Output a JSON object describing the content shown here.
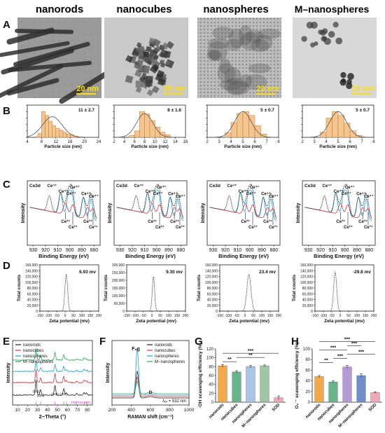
{
  "columns": [
    "nanorods",
    "nanocubes",
    "nanospheres",
    "M–nanospheres"
  ],
  "panel_letters": [
    "A",
    "B",
    "C",
    "D",
    "E",
    "F",
    "G",
    "H"
  ],
  "colors": {
    "accent_yellow": "#ffdd00",
    "hist_fill": "#f6c48e",
    "blue": "#1aa0d8",
    "red": "#e0303a",
    "green": "#2aa860",
    "black": "#222222",
    "gray": "#555555",
    "magenta": "#cc33cc"
  },
  "tem": {
    "scale_label": "20 nm",
    "images": [
      {
        "column": "nanorods",
        "tone": "#9a9a9a",
        "content": "elongated rods"
      },
      {
        "column": "nanocubes",
        "tone": "#c9c9c9",
        "content": "dense cluster of cubes"
      },
      {
        "column": "nanospheres",
        "tone": "#bdbdbd",
        "content": "fine sphere aggregates"
      },
      {
        "column": "M–nanospheres",
        "tone": "#d8d8d8",
        "content": "sparse sphere clusters"
      }
    ]
  },
  "chart_data": [
    {
      "panel": "B",
      "column": "nanorods",
      "type": "bar",
      "annotation": "11 ± 2.7",
      "xlabel": "Particle size (nm)",
      "ylabel": "Frequency (%)",
      "xlim": [
        4,
        24
      ],
      "xticks": [
        "4",
        "8",
        "12",
        "16",
        "20",
        "24"
      ],
      "ylim": [
        0,
        50
      ],
      "yticks": [
        "0",
        "10",
        "20",
        "30",
        "40",
        "50"
      ],
      "bins": [
        [
          6,
          7,
          1
        ],
        [
          7,
          8,
          6
        ],
        [
          8,
          9,
          40
        ],
        [
          9,
          10,
          34
        ],
        [
          10,
          11,
          25
        ],
        [
          11,
          12,
          18
        ],
        [
          12,
          13,
          14
        ],
        [
          13,
          14,
          11
        ],
        [
          14,
          15,
          8
        ],
        [
          15,
          16,
          5
        ],
        [
          16,
          17,
          4
        ],
        [
          17,
          18,
          2
        ]
      ],
      "fit": {
        "mean": 11,
        "sd": 2.7,
        "peak": 32
      }
    },
    {
      "panel": "B",
      "column": "nanocubes",
      "type": "bar",
      "annotation": "8 ± 1.6",
      "xlabel": "Particle size (nm)",
      "ylabel": "Frequency (%)",
      "xlim": [
        2,
        16
      ],
      "xticks": [
        "2",
        "4",
        "6",
        "8",
        "10",
        "12",
        "14",
        "16"
      ],
      "ylim": [
        0,
        50
      ],
      "yticks": [
        "0",
        "10",
        "20",
        "30",
        "40",
        "50"
      ],
      "bins": [
        [
          5,
          6,
          3
        ],
        [
          6,
          7,
          10
        ],
        [
          7,
          8,
          40
        ],
        [
          8,
          9,
          36
        ],
        [
          9,
          10,
          26
        ],
        [
          10,
          11,
          16
        ],
        [
          11,
          12,
          8
        ],
        [
          12,
          13,
          4
        ]
      ],
      "fit": {
        "mean": 8,
        "sd": 1.6,
        "peak": 37
      }
    },
    {
      "panel": "B",
      "column": "nanospheres",
      "type": "bar",
      "annotation": "5 ± 0.7",
      "xlabel": "Particle size (nm)",
      "ylabel": "Frequency (%)",
      "xlim": [
        2,
        8
      ],
      "xticks": [
        "2",
        "3",
        "4",
        "5",
        "6",
        "7",
        "8"
      ],
      "ylim": [
        0,
        50
      ],
      "yticks": [
        "0",
        "10",
        "20",
        "30",
        "40",
        "50"
      ],
      "bins": [
        [
          3.5,
          4,
          7
        ],
        [
          4,
          4.5,
          23
        ],
        [
          4.5,
          5,
          37
        ],
        [
          5,
          5.5,
          40
        ],
        [
          5.5,
          6,
          34
        ],
        [
          6,
          6.5,
          18
        ],
        [
          6.5,
          7,
          5
        ]
      ],
      "fit": {
        "mean": 5,
        "sd": 0.7,
        "peak": 40
      }
    },
    {
      "panel": "B",
      "column": "M–nanospheres",
      "type": "bar",
      "annotation": "5 ± 0.7",
      "xlabel": "Particle size (nm)",
      "ylabel": "Frequency (%)",
      "xlim": [
        2,
        8
      ],
      "xticks": [
        "2",
        "3",
        "4",
        "5",
        "6",
        "7",
        "8"
      ],
      "ylim": [
        0,
        50
      ],
      "yticks": [
        "0",
        "10",
        "20",
        "30",
        "40",
        "50"
      ],
      "bins": [
        [
          3.5,
          4,
          8
        ],
        [
          4,
          4.5,
          30
        ],
        [
          4.5,
          5,
          40
        ],
        [
          5,
          5.5,
          34
        ],
        [
          5.5,
          6,
          22
        ],
        [
          6,
          6.5,
          10
        ],
        [
          6.5,
          7,
          3
        ]
      ],
      "fit": {
        "mean": 5,
        "sd": 0.7,
        "peak": 40
      }
    },
    {
      "panel": "C",
      "type": "line",
      "xlabel": "Binding Energy (eV)",
      "ylabel": "Intensity",
      "xlim": [
        935,
        875
      ],
      "xticks": [
        "930",
        "920",
        "910",
        "900",
        "890",
        "880"
      ],
      "core_label": "Ce3d",
      "peak_labels": [
        "Ce⁴⁺",
        "Ce⁴⁺",
        "Ce⁴⁺",
        "Ce⁴⁺",
        "Ce⁴⁺",
        "Ce⁴⁺",
        "Ce³⁺",
        "Ce³⁺",
        "Ce³⁺",
        "Ce³⁺"
      ],
      "series": [
        {
          "color": "black",
          "kind": "measured"
        },
        {
          "color": "blue",
          "kind": "Ce4+ fit"
        },
        {
          "color": "red",
          "kind": "Ce3+ fit"
        }
      ]
    },
    {
      "panel": "D",
      "column": "nanorods",
      "type": "line",
      "annotation": "6.93 mv",
      "xlabel": "Zeta potential (mv)",
      "ylabel": "Total counts",
      "xlim": [
        -150,
        200
      ],
      "xticks": [
        "-150",
        "-100",
        "-50",
        "0",
        "50",
        "100",
        "150",
        "200"
      ],
      "ylim": [
        0,
        160000
      ],
      "yticks": [
        "0",
        "20,000",
        "40,000",
        "60,000",
        "80,000",
        "100,000",
        "120,000",
        "140,000",
        "160,000"
      ],
      "peak": {
        "x": 6.93,
        "y": 128000,
        "width": 8
      }
    },
    {
      "panel": "D",
      "column": "nanocubes",
      "type": "line",
      "annotation": "9.30 mv",
      "xlabel": "Zeta potential (mv)",
      "ylabel": "Total counts",
      "xlim": [
        -150,
        200
      ],
      "xticks": [
        "-150",
        "-100",
        "-50",
        "0",
        "50",
        "100",
        "150",
        "200"
      ],
      "ylim": [
        0,
        300000
      ],
      "yticks": [
        "0",
        "50,000",
        "100,000",
        "150,000",
        "200,000",
        "250,000",
        "300,000"
      ],
      "peak": {
        "x": 9.3,
        "y": 225000,
        "width": 7
      }
    },
    {
      "panel": "D",
      "column": "nanospheres",
      "type": "line",
      "annotation": "23.4 mv",
      "xlabel": "Zeta potential (mv)",
      "ylabel": "Total counts",
      "xlim": [
        -150,
        200
      ],
      "xticks": [
        "-150",
        "-100",
        "-50",
        "0",
        "50",
        "100",
        "150",
        "200"
      ],
      "ylim": [
        0,
        160000
      ],
      "yticks": [
        "0",
        "20,000",
        "40,000",
        "60,000",
        "80,000",
        "100,000",
        "120,000",
        "140,000",
        "160,000"
      ],
      "peak": {
        "x": 23.4,
        "y": 128000,
        "width": 12
      }
    },
    {
      "panel": "D",
      "column": "M–nanospheres",
      "type": "line",
      "annotation": "-29.8 mv",
      "xlabel": "Zeta potential (mv)",
      "ylabel": "Total counts",
      "xlim": [
        -150,
        200
      ],
      "xticks": [
        "-150",
        "-100",
        "-50",
        "0",
        "50",
        "100",
        "150",
        "200"
      ],
      "ylim": [
        0,
        160000
      ],
      "yticks": [
        "0",
        "20,000",
        "40,000",
        "60,000",
        "80,000",
        "100,000",
        "120,000",
        "140,000",
        "160,000"
      ],
      "peak": {
        "x": -29.8,
        "y": 135000,
        "width": 9
      }
    },
    {
      "panel": "E",
      "type": "line",
      "xlabel": "2−Theta (°)",
      "ylabel": "Intensity",
      "xlim": [
        5,
        85
      ],
      "xticks": [
        "10",
        "20",
        "30",
        "40",
        "50",
        "60",
        "70",
        "80"
      ],
      "peak_positions": [
        28.5,
        33.1,
        47.5,
        56.3,
        59.1,
        69.4,
        76.7,
        79.1
      ],
      "reflections": [
        "(111)",
        "(200)",
        "(220)",
        "(311)"
      ],
      "reference": "PDF#34-0394",
      "series": [
        {
          "name": "nanorods",
          "color": "black"
        },
        {
          "name": "nanocubes",
          "color": "red"
        },
        {
          "name": "nanospheres",
          "color": "blue"
        },
        {
          "name": "M−nanospheres",
          "color": "green"
        }
      ]
    },
    {
      "panel": "F",
      "type": "line",
      "xlabel": "RAMAN shift (cm⁻¹)",
      "ylabel": "Intensity",
      "xlim": [
        200,
        1000
      ],
      "xticks": [
        "200",
        "400",
        "600",
        "800",
        "1000"
      ],
      "peak_label": "F₂g",
      "d_label": "D",
      "excitation": "λₑₓ = 532 nm",
      "peak_x": 462,
      "d_x": 600,
      "series": [
        {
          "name": "nanorods",
          "color": "black",
          "peak": 0.55
        },
        {
          "name": "nanocubes",
          "color": "red",
          "peak": 0.4
        },
        {
          "name": "nanospheres",
          "color": "blue",
          "peak": 0.95
        },
        {
          "name": "M−nanospheres",
          "color": "green",
          "peak": 0.25
        }
      ]
    },
    {
      "panel": "G",
      "type": "bar",
      "ylabel": "·OH scavenging efficiency (%)",
      "ylim": [
        0,
        120
      ],
      "yticks": [
        "0",
        "20",
        "40",
        "60",
        "80",
        "100",
        "120"
      ],
      "categories": [
        "nanorods",
        "nanocubes",
        "nanospheres",
        "M−nanospheres",
        "SOD"
      ],
      "values": [
        82,
        68,
        80,
        82,
        10
      ],
      "errors": [
        3,
        3,
        3,
        2,
        4
      ],
      "bar_colors": [
        "#f2a94a",
        "#68b58b",
        "#a9c4e6",
        "#9fc6a5",
        "#f2a9b6"
      ],
      "sig": [
        {
          "a": 0,
          "b": 1,
          "label": "**"
        },
        {
          "a": 1,
          "b": 3,
          "label": "**"
        },
        {
          "a": 0,
          "b": 4,
          "label": "***"
        }
      ]
    },
    {
      "panel": "H",
      "type": "bar",
      "ylabel": "O₂˙⁻ scavenging efficiency (%)",
      "ylim": [
        0,
        100
      ],
      "yticks": [
        "0",
        "20",
        "40",
        "60",
        "80",
        "100"
      ],
      "categories": [
        "nanorods",
        "nanocubes",
        "nanospheres",
        "M−nanospheres",
        "SOD"
      ],
      "values": [
        48,
        38,
        66,
        50,
        18
      ],
      "errors": [
        2,
        2,
        3,
        3,
        1.5
      ],
      "bar_colors": [
        "#f2a94a",
        "#68b58b",
        "#b49ad6",
        "#6f8fcc",
        "#f2a9b6"
      ],
      "sig": [
        {
          "a": 0,
          "b": 1,
          "label": "**"
        },
        {
          "a": 1,
          "b": 2,
          "label": "***"
        },
        {
          "a": 2,
          "b": 4,
          "label": "***"
        },
        {
          "a": 0,
          "b": 2,
          "label": "***"
        },
        {
          "a": 2,
          "b": 3,
          "label": "***"
        },
        {
          "a": 0,
          "b": 4,
          "label": "***"
        }
      ]
    }
  ]
}
